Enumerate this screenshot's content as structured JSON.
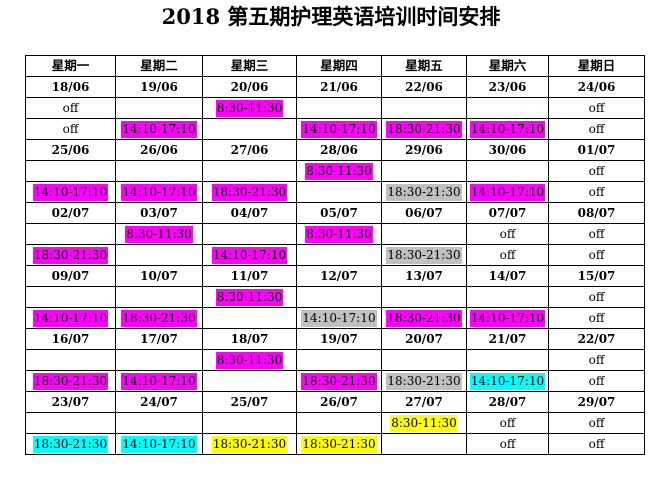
{
  "title": "2018 第五期护理英语培训时间安排",
  "weekdays": [
    "星期一",
    "星期二",
    "星期三",
    "星期四",
    "星期五",
    "星期六",
    "星期日"
  ],
  "colors": {
    "magenta": "#ff00ff",
    "gray": "#c0c0c0",
    "cyan": "#00ffff",
    "yellow": "#ffff00"
  },
  "weeks": [
    {
      "dates": [
        "18/06",
        "19/06",
        "20/06",
        "21/06",
        "22/06",
        "23/06",
        "24/06"
      ],
      "slots": [
        [
          {
            "text": "off",
            "color": "none"
          },
          {
            "text": "",
            "color": "none"
          },
          {
            "text": "8:30-11:30",
            "color": "magenta"
          },
          {
            "text": "",
            "color": "none"
          },
          {
            "text": "",
            "color": "none"
          },
          {
            "text": "",
            "color": "none"
          },
          {
            "text": "off",
            "color": "none"
          }
        ],
        [
          {
            "text": "off",
            "color": "none"
          },
          {
            "text": "14:10-17:10",
            "color": "magenta"
          },
          {
            "text": "",
            "color": "none"
          },
          {
            "text": "14:10-17:10",
            "color": "magenta"
          },
          {
            "text": "18:30-21:30",
            "color": "magenta"
          },
          {
            "text": "14:10-17:10",
            "color": "magenta"
          },
          {
            "text": "off",
            "color": "none"
          }
        ]
      ]
    },
    {
      "dates": [
        "25/06",
        "26/06",
        "27/06",
        "28/06",
        "29/06",
        "30/06",
        "01/07"
      ],
      "slots": [
        [
          {
            "text": "",
            "color": "none"
          },
          {
            "text": "",
            "color": "none"
          },
          {
            "text": "",
            "color": "none"
          },
          {
            "text": "8:30-11:30",
            "color": "magenta"
          },
          {
            "text": "",
            "color": "none"
          },
          {
            "text": "",
            "color": "none"
          },
          {
            "text": "off",
            "color": "none"
          }
        ],
        [
          {
            "text": "14:10-17:10",
            "color": "magenta"
          },
          {
            "text": "14:10-17:10",
            "color": "magenta"
          },
          {
            "text": "18:30-21:30",
            "color": "magenta"
          },
          {
            "text": "",
            "color": "none"
          },
          {
            "text": "18:30-21:30",
            "color": "gray"
          },
          {
            "text": "14:10-17:10",
            "color": "magenta"
          },
          {
            "text": "off",
            "color": "none"
          }
        ]
      ]
    },
    {
      "dates": [
        "02/07",
        "03/07",
        "04/07",
        "05/07",
        "06/07",
        "07/07",
        "08/07"
      ],
      "slots": [
        [
          {
            "text": "",
            "color": "none"
          },
          {
            "text": "8:30-11:30",
            "color": "magenta"
          },
          {
            "text": "",
            "color": "none"
          },
          {
            "text": "8:30-11:30",
            "color": "magenta"
          },
          {
            "text": "",
            "color": "none"
          },
          {
            "text": "off",
            "color": "none"
          },
          {
            "text": "off",
            "color": "none"
          }
        ],
        [
          {
            "text": "18:30-21:30",
            "color": "magenta"
          },
          {
            "text": "",
            "color": "none"
          },
          {
            "text": "14:10-17:10",
            "color": "magenta"
          },
          {
            "text": "",
            "color": "none"
          },
          {
            "text": "18:30-21:30",
            "color": "gray"
          },
          {
            "text": "off",
            "color": "none"
          },
          {
            "text": "off",
            "color": "none"
          }
        ]
      ]
    },
    {
      "dates": [
        "09/07",
        "10/07",
        "11/07",
        "12/07",
        "13/07",
        "14/07",
        "15/07"
      ],
      "slots": [
        [
          {
            "text": "",
            "color": "none"
          },
          {
            "text": "",
            "color": "none"
          },
          {
            "text": "8:30-11:30",
            "color": "magenta"
          },
          {
            "text": "",
            "color": "none"
          },
          {
            "text": "",
            "color": "none"
          },
          {
            "text": "",
            "color": "none"
          },
          {
            "text": "off",
            "color": "none"
          }
        ],
        [
          {
            "text": "14:10-17:10",
            "color": "magenta"
          },
          {
            "text": "18:30-21:30",
            "color": "magenta"
          },
          {
            "text": "",
            "color": "none"
          },
          {
            "text": "14:10-17:10",
            "color": "gray"
          },
          {
            "text": "18:30-21:30",
            "color": "magenta"
          },
          {
            "text": "14:10-17:10",
            "color": "magenta"
          },
          {
            "text": "off",
            "color": "none"
          }
        ]
      ]
    },
    {
      "dates": [
        "16/07",
        "17/07",
        "18/07",
        "19/07",
        "20/07",
        "21/07",
        "22/07"
      ],
      "slots": [
        [
          {
            "text": "",
            "color": "none"
          },
          {
            "text": "",
            "color": "none"
          },
          {
            "text": "8:30-11:30",
            "color": "magenta"
          },
          {
            "text": "",
            "color": "none"
          },
          {
            "text": "",
            "color": "none"
          },
          {
            "text": "",
            "color": "none"
          },
          {
            "text": "off",
            "color": "none"
          }
        ],
        [
          {
            "text": "18:30-21:30",
            "color": "magenta"
          },
          {
            "text": "14:10-17:10",
            "color": "magenta"
          },
          {
            "text": "",
            "color": "none"
          },
          {
            "text": "18:30-21:30",
            "color": "magenta"
          },
          {
            "text": "18:30-21:30",
            "color": "gray"
          },
          {
            "text": "14:10-17:10",
            "color": "cyan"
          },
          {
            "text": "off",
            "color": "none"
          }
        ]
      ]
    },
    {
      "dates": [
        "23/07",
        "24/07",
        "25/07",
        "26/07",
        "27/07",
        "28/07",
        "29/07"
      ],
      "slots": [
        [
          {
            "text": "",
            "color": "none"
          },
          {
            "text": "",
            "color": "none"
          },
          {
            "text": "",
            "color": "none"
          },
          {
            "text": "",
            "color": "none"
          },
          {
            "text": "8:30-11:30",
            "color": "yellow"
          },
          {
            "text": "off",
            "color": "none"
          },
          {
            "text": "off",
            "color": "none"
          }
        ],
        [
          {
            "text": "18:30-21:30",
            "color": "cyan"
          },
          {
            "text": "14:10-17:10",
            "color": "cyan"
          },
          {
            "text": "18:30-21:30",
            "color": "yellow"
          },
          {
            "text": "18:30-21:30",
            "color": "yellow"
          },
          {
            "text": "",
            "color": "none"
          },
          {
            "text": "off",
            "color": "none"
          },
          {
            "text": "off",
            "color": "none"
          }
        ]
      ]
    }
  ]
}
